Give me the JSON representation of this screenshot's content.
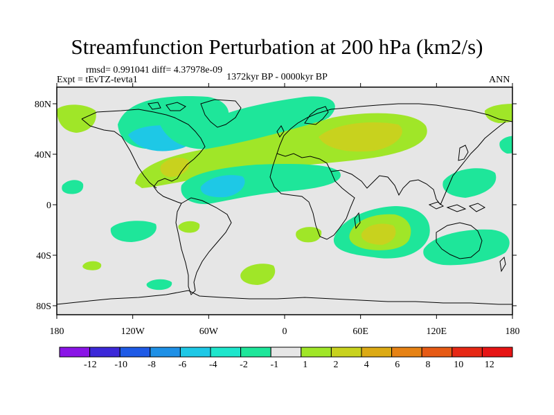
{
  "title": "Streamfunction Perturbation at 200 hPa (km2/s)",
  "stats_line": "rmsd= 0.991041 diff= 4.37978e-09",
  "experiment": "Expt = tEvTZ-tevta1",
  "period": "1372kyr BP - 0000kyr BP",
  "season": "ANN",
  "chart_data": {
    "type": "contour-map",
    "projection": "cylindrical-equidistant",
    "lon_range": [
      -180,
      180
    ],
    "lat_range": [
      -90,
      90
    ],
    "lon_ticks": [
      "180",
      "120W",
      "60W",
      "0",
      "60E",
      "120E",
      "180"
    ],
    "lat_ticks": [
      "80N",
      "40N",
      "0",
      "40S",
      "80S"
    ],
    "colorbar": {
      "labels": [
        "-12",
        "-10",
        "-8",
        "-6",
        "-4",
        "-2",
        "-1",
        "1",
        "2",
        "4",
        "6",
        "8",
        "10",
        "12"
      ],
      "colors": [
        "#8a14e6",
        "#3c28d8",
        "#1e5ae6",
        "#1e90e6",
        "#1ec8e6",
        "#1ee6cc",
        "#1ee69a",
        "#e6e6e6",
        "#a0e628",
        "#c8d21e",
        "#dcaa14",
        "#e68214",
        "#e65a14",
        "#e62814",
        "#e61414"
      ]
    }
  }
}
